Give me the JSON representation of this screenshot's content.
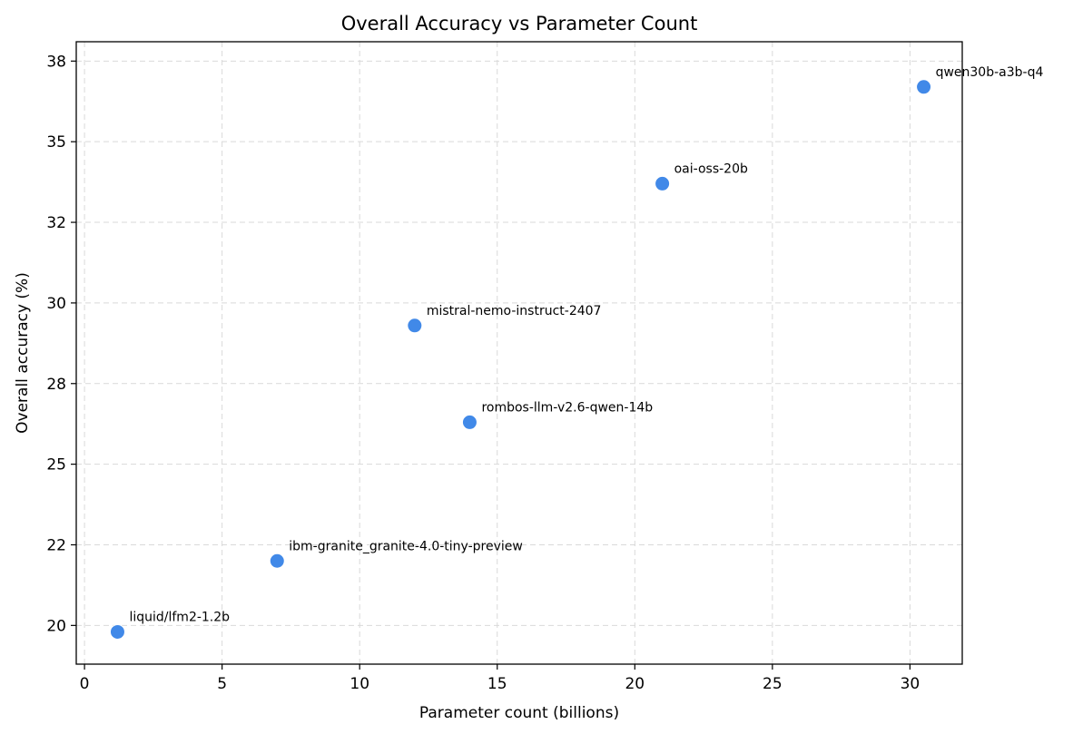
{
  "chart_data": {
    "type": "scatter",
    "title": "Overall Accuracy vs Parameter Count",
    "xlabel": "Parameter count (billions)",
    "ylabel": "Overall accuracy (%)",
    "xlim": [
      -0.3,
      31.9
    ],
    "ylim": [
      18.8,
      38.1
    ],
    "x_ticks": [
      0,
      5,
      10,
      15,
      20,
      25,
      30
    ],
    "x_tick_labels": [
      "0",
      "5",
      "10",
      "15",
      "20",
      "25",
      "30"
    ],
    "y_ticks": [
      20,
      22.5,
      25,
      27.5,
      30,
      32.5,
      35,
      37.5
    ],
    "y_tick_labels": [
      "20",
      "22",
      "25",
      "28",
      "30",
      "32",
      "35",
      "38"
    ],
    "grid": true,
    "marker_color": "#4189e8",
    "points": [
      {
        "x": 1.2,
        "y": 19.8,
        "label": "liquid/lfm2-1.2b"
      },
      {
        "x": 7.0,
        "y": 22.0,
        "label": "ibm-granite_granite-4.0-tiny-preview"
      },
      {
        "x": 12.0,
        "y": 29.3,
        "label": "mistral-nemo-instruct-2407"
      },
      {
        "x": 14.0,
        "y": 26.3,
        "label": "rombos-llm-v2.6-qwen-14b"
      },
      {
        "x": 21.0,
        "y": 33.7,
        "label": "oai-oss-20b"
      },
      {
        "x": 30.5,
        "y": 36.7,
        "label": "qwen30b-a3b-q4"
      }
    ]
  }
}
